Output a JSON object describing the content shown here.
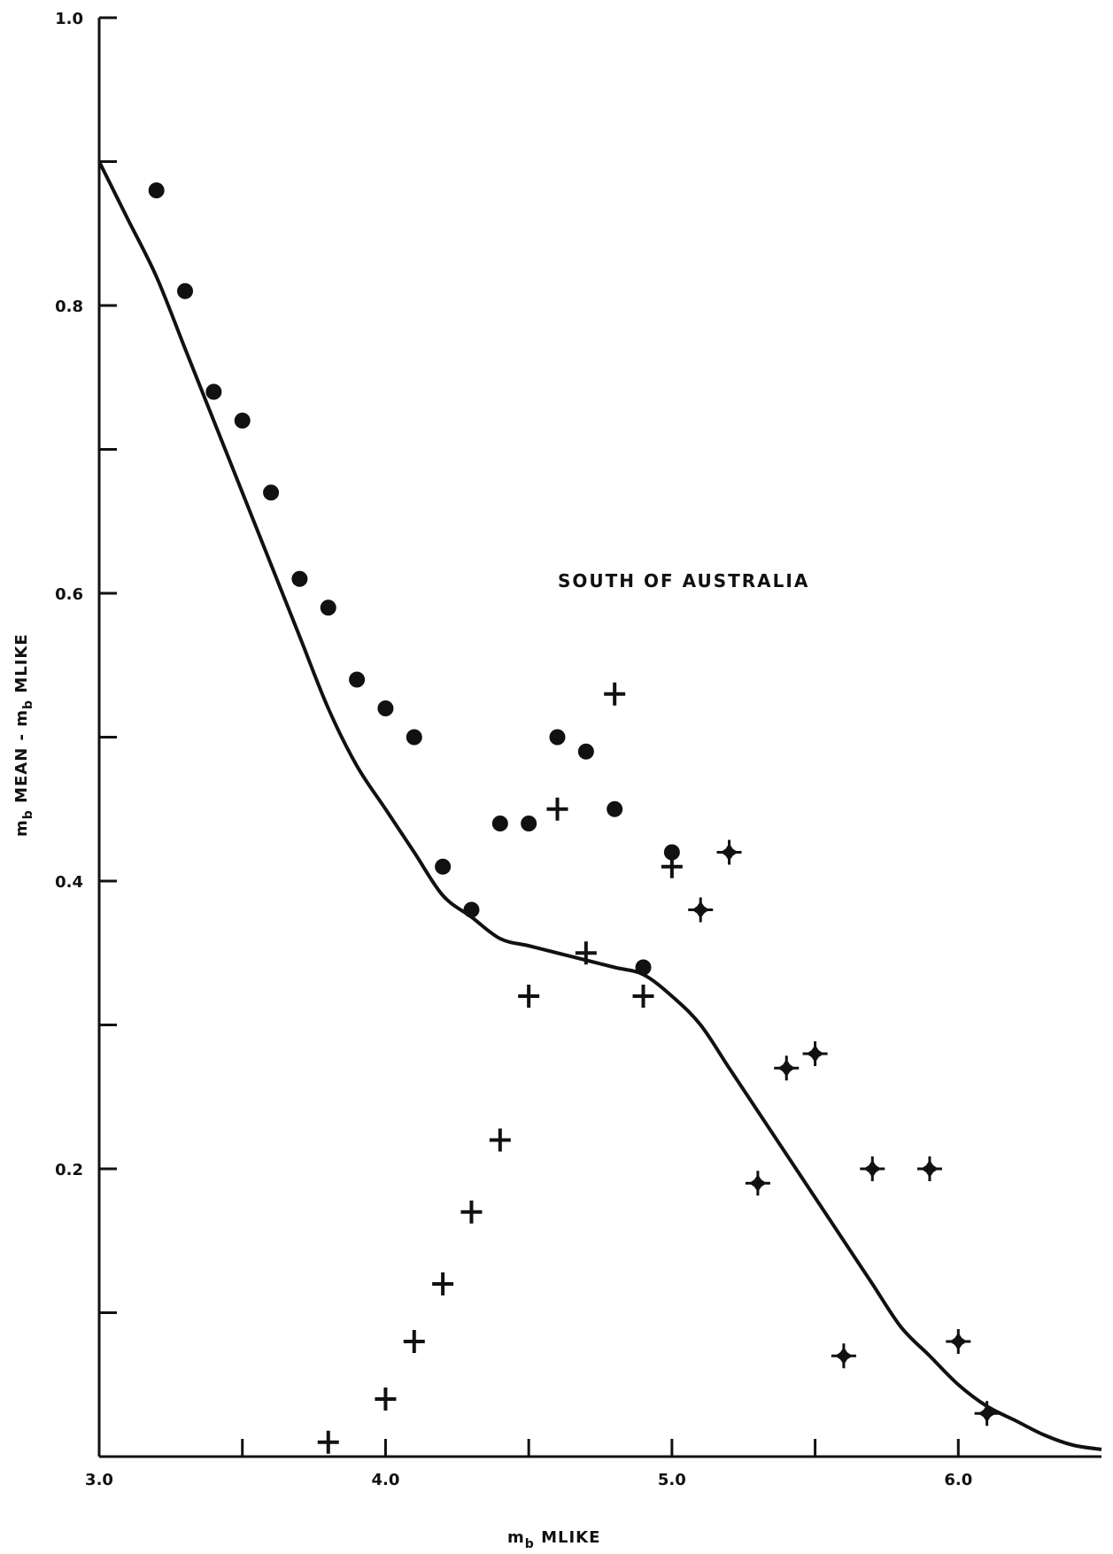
{
  "chart_data": {
    "type": "scatter",
    "title": "",
    "annotation": "SOUTH OF AUSTRALIA",
    "xlabel": {
      "main": "m",
      "sub": "b",
      "rest": " MLIKE"
    },
    "ylabel": {
      "p1": "m",
      "s1": "b",
      "p2": " MEAN - m",
      "s2": "b",
      "p3": " MLIKE"
    },
    "xlim": [
      3.0,
      6.5
    ],
    "ylim": [
      0.0,
      1.0
    ],
    "x_ticks": [
      3.0,
      3.5,
      4.0,
      4.5,
      5.0,
      5.5,
      6.0
    ],
    "x_tick_labels": [
      {
        "value": 3.0,
        "label": "3.0"
      },
      {
        "value": 4.0,
        "label": "4.0"
      },
      {
        "value": 5.0,
        "label": "5.0"
      },
      {
        "value": 6.0,
        "label": "6.0"
      }
    ],
    "y_ticks": [
      0.1,
      0.2,
      0.3,
      0.4,
      0.5,
      0.6,
      0.7,
      0.8,
      0.9,
      1.0
    ],
    "y_tick_labels": [
      {
        "value": 0.2,
        "label": "0.2"
      },
      {
        "value": 0.4,
        "label": "0.4"
      },
      {
        "value": 0.6,
        "label": "0.6"
      },
      {
        "value": 0.8,
        "label": "0.8"
      },
      {
        "value": 1.0,
        "label": "1.0"
      }
    ],
    "grid": false,
    "series": [
      {
        "marker": "circle",
        "points": [
          [
            3.2,
            0.88
          ],
          [
            3.3,
            0.81
          ],
          [
            3.4,
            0.74
          ],
          [
            3.5,
            0.72
          ],
          [
            3.6,
            0.67
          ],
          [
            3.7,
            0.61
          ],
          [
            3.8,
            0.59
          ],
          [
            3.9,
            0.54
          ],
          [
            4.0,
            0.52
          ],
          [
            4.1,
            0.5
          ],
          [
            4.2,
            0.41
          ],
          [
            4.3,
            0.38
          ],
          [
            4.4,
            0.44
          ],
          [
            4.5,
            0.44
          ],
          [
            4.6,
            0.5
          ],
          [
            4.7,
            0.49
          ],
          [
            4.8,
            0.45
          ],
          [
            4.9,
            0.34
          ],
          [
            5.0,
            0.42
          ]
        ]
      },
      {
        "marker": "plus",
        "points": [
          [
            3.8,
            0.01
          ],
          [
            4.0,
            0.04
          ],
          [
            4.1,
            0.08
          ],
          [
            4.2,
            0.12
          ],
          [
            4.3,
            0.17
          ],
          [
            4.4,
            0.22
          ],
          [
            4.5,
            0.32
          ],
          [
            4.6,
            0.45
          ],
          [
            4.7,
            0.35
          ],
          [
            4.8,
            0.53
          ],
          [
            4.9,
            0.32
          ],
          [
            5.0,
            0.41
          ]
        ]
      },
      {
        "marker": "star",
        "points": [
          [
            5.1,
            0.38
          ],
          [
            5.2,
            0.42
          ],
          [
            5.3,
            0.19
          ],
          [
            5.4,
            0.27
          ],
          [
            5.5,
            0.28
          ],
          [
            5.6,
            0.07
          ],
          [
            5.7,
            0.2
          ],
          [
            5.9,
            0.2
          ],
          [
            6.0,
            0.08
          ],
          [
            6.1,
            0.03
          ]
        ]
      },
      {
        "marker": "line",
        "points": [
          [
            3.0,
            0.9
          ],
          [
            3.1,
            0.86
          ],
          [
            3.2,
            0.82
          ],
          [
            3.3,
            0.77
          ],
          [
            3.4,
            0.72
          ],
          [
            3.5,
            0.67
          ],
          [
            3.6,
            0.62
          ],
          [
            3.7,
            0.57
          ],
          [
            3.8,
            0.52
          ],
          [
            3.9,
            0.48
          ],
          [
            4.0,
            0.45
          ],
          [
            4.1,
            0.42
          ],
          [
            4.2,
            0.39
          ],
          [
            4.3,
            0.375
          ],
          [
            4.4,
            0.36
          ],
          [
            4.5,
            0.355
          ],
          [
            4.6,
            0.35
          ],
          [
            4.7,
            0.345
          ],
          [
            4.8,
            0.34
          ],
          [
            4.9,
            0.335
          ],
          [
            5.0,
            0.32
          ],
          [
            5.1,
            0.3
          ],
          [
            5.2,
            0.27
          ],
          [
            5.3,
            0.24
          ],
          [
            5.4,
            0.21
          ],
          [
            5.5,
            0.18
          ],
          [
            5.6,
            0.15
          ],
          [
            5.7,
            0.12
          ],
          [
            5.8,
            0.09
          ],
          [
            5.9,
            0.07
          ],
          [
            6.0,
            0.05
          ],
          [
            6.1,
            0.035
          ],
          [
            6.2,
            0.025
          ],
          [
            6.3,
            0.015
          ],
          [
            6.4,
            0.008
          ],
          [
            6.5,
            0.005
          ]
        ]
      }
    ]
  }
}
